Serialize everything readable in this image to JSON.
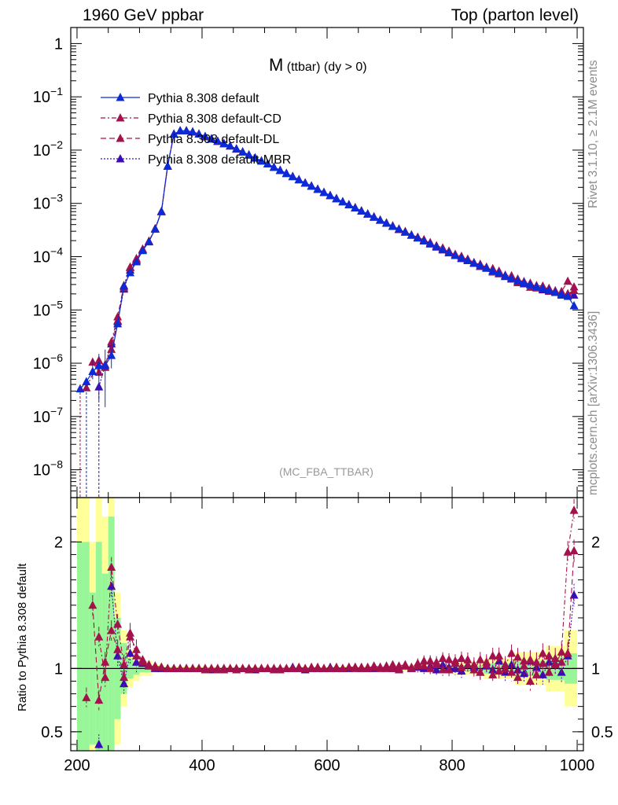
{
  "header": {
    "left": "1960 GeV ppbar",
    "right": "Top (parton level)"
  },
  "side_labels": {
    "rivet": "Rivet 3.1.10, ≥ 2.1M events",
    "mcplots": "mcplots.cern.ch [arXiv:1306.3436]"
  },
  "chart_data": {
    "type": "line",
    "title_main": "M",
    "title_sub": "(ttbar) (dy > 0)",
    "watermark": "(MC_FBA_TTBAR)",
    "upper_panel": {
      "yscale": "log",
      "ylim": [
        3e-09,
        2.0
      ],
      "yticks": [
        {
          "v": 1,
          "label": "1"
        },
        {
          "v": 0.1,
          "label": "10",
          "exp": "−1"
        },
        {
          "v": 0.01,
          "label": "10",
          "exp": "−2"
        },
        {
          "v": 0.001,
          "label": "10",
          "exp": "−3"
        },
        {
          "v": 0.0001,
          "label": "10",
          "exp": "−4"
        },
        {
          "v": 1e-05,
          "label": "10",
          "exp": "−5"
        },
        {
          "v": 1e-06,
          "label": "10",
          "exp": "−6"
        },
        {
          "v": 1e-07,
          "label": "10",
          "exp": "−7"
        },
        {
          "v": 1e-08,
          "label": "10",
          "exp": "−8"
        }
      ]
    },
    "ratio_panel": {
      "ylabel": "Ratio to Pythia 8.308 default",
      "ylim": [
        0.35,
        2.35
      ],
      "yticks": [
        {
          "v": 0.5,
          "label": "0.5"
        },
        {
          "v": 1,
          "label": "1"
        },
        {
          "v": 2,
          "label": "2"
        }
      ]
    },
    "xlim": [
      190,
      1010
    ],
    "xticks": [
      {
        "v": 200,
        "label": "200"
      },
      {
        "v": 400,
        "label": "400"
      },
      {
        "v": 600,
        "label": "600"
      },
      {
        "v": 800,
        "label": "800"
      },
      {
        "v": 1000,
        "label": "1000"
      }
    ],
    "legend_position": "top-left",
    "series": [
      {
        "name": "Pythia 8.308 default",
        "color": "#0a2bd6",
        "dash": "",
        "marker": "triangle"
      },
      {
        "name": "Pythia 8.308 default-CD",
        "color": "#a3124c",
        "dash": "6,3,2,3",
        "marker": "triangle"
      },
      {
        "name": "Pythia 8.308 default-DL",
        "color": "#a3124c",
        "dash": "7,4",
        "marker": "triangle"
      },
      {
        "name": "Pythia 8.308 default-MBR",
        "color": "#3b0cb6",
        "dash": "2,2",
        "marker": "triangle"
      }
    ],
    "distribution": {
      "x": [
        205,
        215,
        225,
        235,
        245,
        255,
        265,
        275,
        285,
        295,
        305,
        315,
        325,
        335,
        345,
        355,
        365,
        375,
        385,
        395,
        405,
        445,
        505,
        605,
        705,
        805,
        905,
        985,
        995
      ],
      "y": [
        3.3e-07,
        4.5e-07,
        7e-07,
        9e-07,
        9e-07,
        1.4e-06,
        5.5e-06,
        2.8e-05,
        5e-05,
        8e-05,
        0.00013,
        0.00019,
        0.00033,
        0.0007,
        0.005,
        0.02,
        0.023,
        0.023,
        0.022,
        0.02,
        0.018,
        0.012,
        0.0055,
        0.0014,
        0.00037,
        0.000105,
        3.5e-05,
        1.8e-05,
        1.2e-05
      ]
    },
    "ratios": {
      "x": [
        205,
        215,
        225,
        235,
        245,
        255,
        265,
        275,
        285,
        295,
        305,
        315,
        325,
        335,
        345,
        355,
        365,
        375,
        385,
        395,
        405,
        415,
        425,
        435,
        445,
        455,
        465,
        475,
        485,
        495,
        505,
        515,
        525,
        535,
        545,
        555,
        565,
        575,
        585,
        595,
        605,
        615,
        625,
        635,
        645,
        655,
        665,
        675,
        685,
        695,
        705,
        715,
        725,
        735,
        745,
        755,
        765,
        775,
        785,
        795,
        805,
        815,
        825,
        835,
        845,
        855,
        865,
        875,
        885,
        895,
        905,
        915,
        925,
        935,
        945,
        955,
        965,
        975,
        985,
        995
      ],
      "CD": [
        null,
        0.77,
        null,
        1.25,
        0.93,
        1.8,
        1.35,
        1.03,
        1.28,
        1.1,
        1.07,
        1.02,
        1.02,
        1.01,
        1.0,
        1.0,
        1.0,
        1.0,
        1.0,
        1.0,
        0.99,
        1.0,
        1.0,
        0.99,
        1.0,
        1.0,
        1.0,
        0.99,
        1.0,
        1.0,
        1.0,
        1.0,
        0.99,
        1.0,
        1.0,
        1.0,
        1.0,
        1.01,
        1.0,
        1.0,
        1.0,
        1.01,
        1.0,
        1.01,
        1.0,
        1.01,
        1.0,
        1.02,
        1.01,
        1.0,
        1.03,
        0.99,
        1.02,
        1.01,
        1.04,
        1.02,
        1.06,
        1.03,
        0.99,
        1.07,
        1.04,
        1.01,
        1.07,
        1.03,
        0.97,
        1.05,
        1.1,
        0.98,
        1.03,
        1.12,
        0.93,
        1.06,
        1.07,
        0.95,
        1.04,
        1.1,
        1.03,
        1.13,
        1.92,
        2.25
      ],
      "DL": [
        null,
        null,
        1.5,
        0.75,
        1.05,
        1.3,
        1.15,
        0.93,
        1.25,
        1.15,
        1.05,
        1.03,
        1.01,
        1.01,
        1.0,
        1.0,
        1.0,
        1.0,
        1.0,
        1.0,
        1.0,
        1.0,
        0.99,
        1.0,
        1.0,
        0.99,
        1.0,
        1.0,
        1.0,
        1.0,
        1.0,
        0.99,
        1.0,
        1.0,
        1.0,
        1.01,
        1.0,
        1.0,
        1.01,
        1.0,
        1.0,
        1.0,
        1.0,
        1.01,
        1.01,
        1.0,
        1.01,
        1.01,
        1.0,
        1.02,
        1.0,
        1.02,
        1.03,
        1.0,
        1.02,
        1.06,
        1.0,
        1.05,
        1.08,
        0.99,
        1.06,
        1.08,
        1.03,
        0.99,
        1.07,
        1.03,
        0.95,
        1.1,
        1.0,
        0.97,
        1.09,
        1.02,
        0.9,
        1.05,
        1.12,
        0.97,
        1.08,
        1.05,
        1.12,
        1.93
      ],
      "MBR": [
        null,
        null,
        null,
        0.4,
        null,
        1.65,
        1.1,
        0.88,
        1.12,
        1.05,
        1.04,
        1.02,
        1.0,
        1.0,
        1.0,
        1.0,
        1.0,
        1.0,
        1.0,
        1.0,
        1.0,
        0.99,
        1.0,
        1.0,
        1.0,
        1.0,
        1.0,
        1.0,
        0.99,
        1.0,
        1.0,
        1.0,
        1.0,
        1.0,
        1.01,
        1.0,
        0.99,
        1.0,
        1.0,
        1.0,
        1.01,
        1.0,
        1.0,
        1.0,
        1.01,
        1.0,
        1.0,
        1.0,
        1.01,
        1.01,
        1.0,
        1.0,
        1.02,
        1.0,
        1.01,
        1.0,
        1.02,
        0.99,
        1.03,
        1.01,
        1.0,
        0.98,
        1.03,
        1.01,
        0.97,
        1.02,
        0.99,
        1.06,
        0.97,
        1.03,
        0.99,
        0.96,
        1.06,
        1.01,
        0.95,
        1.05,
        1.04,
        0.97,
        1.1,
        1.58
      ]
    },
    "uncertainty_band": {
      "x_edges": [
        200,
        210,
        220,
        230,
        240,
        250,
        260,
        270,
        280,
        290,
        300,
        320,
        340,
        360,
        400,
        500,
        600,
        700,
        750,
        800,
        850,
        900,
        950,
        980,
        1000
      ],
      "green_halfwidth": [
        1.0,
        1.0,
        0.6,
        1.0,
        0.75,
        1.2,
        0.4,
        0.2,
        0.08,
        0.05,
        0.03,
        0.015,
        0.01,
        0.008,
        0.006,
        0.006,
        0.008,
        0.012,
        0.018,
        0.025,
        0.04,
        0.06,
        0.09,
        0.12,
        0.16
      ],
      "yellow_halfwidth": [
        1.4,
        1.4,
        1.0,
        1.4,
        1.2,
        1.4,
        0.6,
        0.3,
        0.15,
        0.1,
        0.06,
        0.03,
        0.02,
        0.015,
        0.012,
        0.012,
        0.015,
        0.025,
        0.035,
        0.05,
        0.08,
        0.13,
        0.18,
        0.3,
        0.38
      ]
    }
  }
}
